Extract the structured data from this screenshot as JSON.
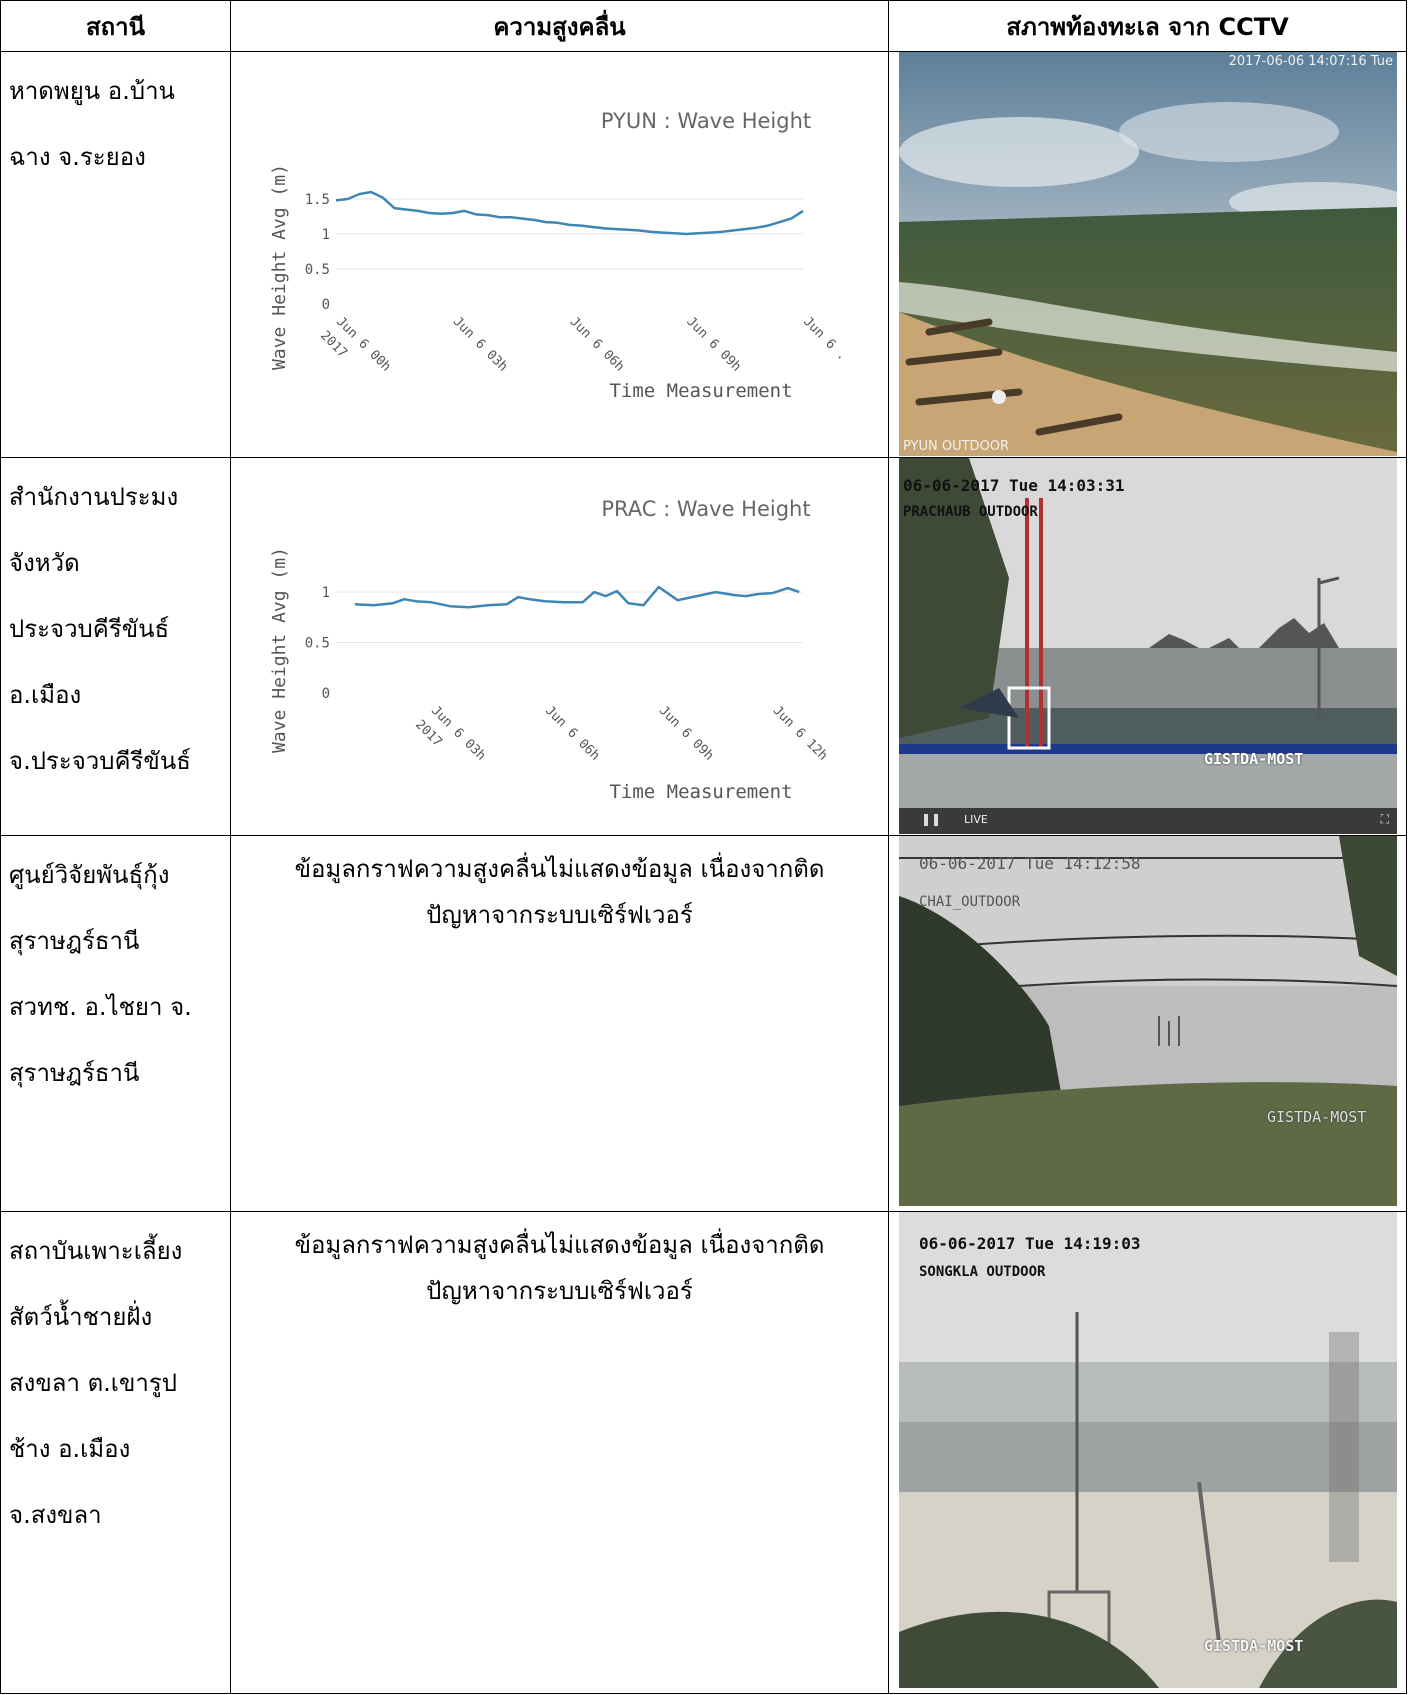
{
  "headers": {
    "station": "สถานี",
    "wave_height": "ความสูงคลื่น",
    "cctv": "สภาพท้องทะเล จาก CCTV"
  },
  "rows": [
    {
      "station_lines": [
        "หาดพยูน อ.บ้าน",
        "ฉาง จ.ระยอง"
      ],
      "chart": {
        "title": "PYUN : Wave Height",
        "ylabel": "Wave Height Avg (m)",
        "xlabel": "Time Measurement",
        "yticks": [
          "0",
          "0.5",
          "1",
          "1.5"
        ],
        "xticks": [
          "Jun 6 00h 2017",
          "Jun 6 03h",
          "Jun 6 06h",
          "Jun 6 09h",
          "Jun 6 ."
        ]
      },
      "cctv": {
        "timestamp": "2017-06-06 14:07:16 Tue",
        "label": "PYUN OUTDOOR"
      }
    },
    {
      "station_lines": [
        "สำนักงานประมง",
        "จังหวัด",
        "ประจวบคีรีขันธ์",
        "อ.เมือง",
        "จ.ประจวบคีรีขันธ์"
      ],
      "chart": {
        "title": "PRAC : Wave Height",
        "ylabel": "Wave Height Avg (m)",
        "xlabel": "Time Measurement",
        "yticks": [
          "0",
          "0.5",
          "1"
        ],
        "xticks": [
          "Jun 6 03h 2017",
          "Jun 6 06h",
          "Jun 6 09h",
          "Jun 6 12h"
        ]
      },
      "cctv": {
        "timestamp": "06-06-2017 Tue 14:03:31",
        "label": "PRACHAUB OUTDOOR",
        "watermark": "GISTDA-MOST",
        "player": "LIVE"
      }
    },
    {
      "station_lines": [
        "ศูนย์วิจัยพันธุ์กุ้ง",
        "สุราษฎร์ธานี",
        "สวทช. อ.ไชยา จ.",
        "สุราษฎร์ธานี"
      ],
      "message_lines": [
        "ข้อมูลกราฟความสูงคลื่นไม่แสดงข้อมูล เนื่องจากติด",
        "ปัญหาจากระบบเซิร์ฟเวอร์"
      ],
      "cctv": {
        "timestamp": "06-06-2017 Tue 14:12:58",
        "label": "CHAI_OUTDOOR",
        "watermark": "GISTDA-MOST"
      }
    },
    {
      "station_lines": [
        "สถาบันเพาะเลี้ยง",
        "สัตว์น้ำชายฝั่ง",
        "สงขลา ต.เขารูป",
        "ช้าง อ.เมือง",
        "จ.สงขลา"
      ],
      "message_lines": [
        "ข้อมูลกราฟความสูงคลื่นไม่แสดงข้อมูล เนื่องจากติด",
        "ปัญหาจากระบบเซิร์ฟเวอร์"
      ],
      "cctv": {
        "timestamp": "06-06-2017 Tue 14:19:03",
        "label": "SONGKLA OUTDOOR",
        "watermark": "GISTDA-MOST"
      }
    }
  ],
  "chart_data": [
    {
      "type": "line",
      "title": "PYUN : Wave Height",
      "xlabel": "Time Measurement",
      "ylabel": "Wave Height Avg (m)",
      "ylim": [
        0,
        1.5
      ],
      "x_hours": [
        0,
        0.3,
        0.6,
        0.9,
        1.2,
        1.5,
        1.8,
        2.1,
        2.4,
        2.7,
        3.0,
        3.3,
        3.6,
        3.9,
        4.2,
        4.5,
        4.8,
        5.1,
        5.4,
        5.7,
        6.0,
        6.3,
        6.6,
        6.9,
        7.2,
        7.5,
        7.8,
        8.1,
        8.4,
        8.7,
        9.0,
        9.3,
        9.6,
        9.9,
        10.2,
        10.5,
        10.8,
        11.1,
        11.4,
        11.7,
        12.0
      ],
      "values": [
        1.48,
        1.5,
        1.57,
        1.6,
        1.52,
        1.37,
        1.35,
        1.33,
        1.3,
        1.29,
        1.3,
        1.33,
        1.28,
        1.27,
        1.24,
        1.24,
        1.22,
        1.2,
        1.17,
        1.16,
        1.13,
        1.12,
        1.1,
        1.08,
        1.07,
        1.06,
        1.05,
        1.03,
        1.02,
        1.01,
        1.0,
        1.01,
        1.02,
        1.03,
        1.05,
        1.07,
        1.09,
        1.12,
        1.17,
        1.22,
        1.33
      ]
    },
    {
      "type": "line",
      "title": "PRAC : Wave Height",
      "xlabel": "Time Measurement",
      "ylabel": "Wave Height Avg (m)",
      "ylim": [
        0,
        1
      ],
      "x_hours": [
        1.0,
        1.5,
        2.0,
        2.3,
        2.6,
        3.0,
        3.5,
        4.0,
        4.5,
        5.0,
        5.3,
        5.6,
        6.0,
        6.5,
        7.0,
        7.3,
        7.6,
        7.9,
        8.2,
        8.6,
        9.0,
        9.5,
        10.0,
        10.5,
        11.0,
        11.3,
        11.6,
        12.0,
        12.4,
        12.7
      ],
      "values": [
        0.88,
        0.87,
        0.89,
        0.93,
        0.91,
        0.9,
        0.86,
        0.85,
        0.87,
        0.88,
        0.95,
        0.93,
        0.91,
        0.9,
        0.9,
        1.0,
        0.96,
        1.01,
        0.89,
        0.87,
        1.05,
        0.92,
        0.96,
        1.0,
        0.97,
        0.96,
        0.98,
        0.99,
        1.04,
        1.0
      ]
    }
  ]
}
